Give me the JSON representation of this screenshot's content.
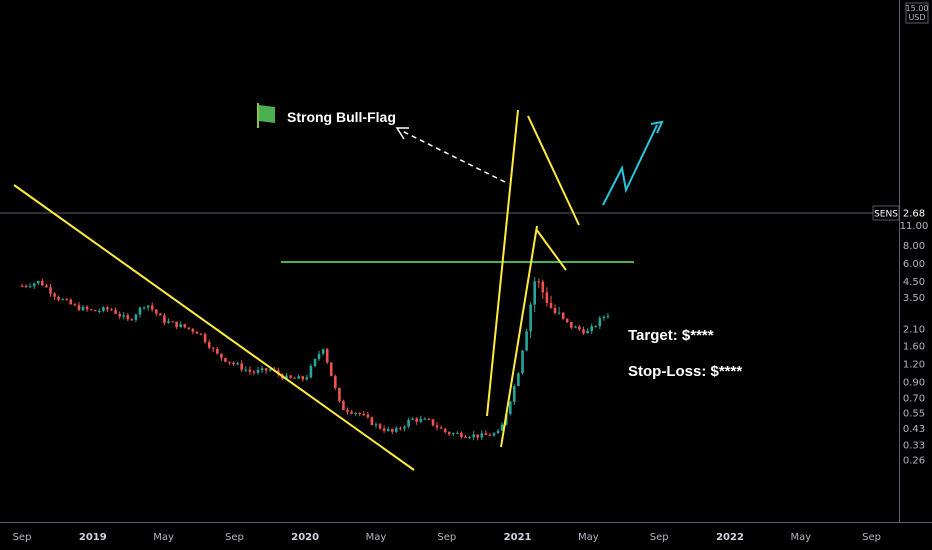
{
  "chart_data": {
    "type": "candlestick",
    "ticker": "SENS",
    "currency": "USD",
    "last_price": "2.68",
    "y_scale": "log",
    "y_ticks": [
      "0.26",
      "0.33",
      "0.43",
      "0.55",
      "0.70",
      "0.90",
      "1.20",
      "1.60",
      "2.10",
      "2.68",
      "3.50",
      "4.50",
      "6.00",
      "8.00",
      "11.00",
      "15.00"
    ],
    "x_ticks": [
      {
        "label": "Sep",
        "bold": false
      },
      {
        "label": "2019",
        "bold": true
      },
      {
        "label": "May",
        "bold": false
      },
      {
        "label": "Sep",
        "bold": false
      },
      {
        "label": "2020",
        "bold": true
      },
      {
        "label": "May",
        "bold": false
      },
      {
        "label": "Sep",
        "bold": false
      },
      {
        "label": "2021",
        "bold": true
      },
      {
        "label": "May",
        "bold": false
      },
      {
        "label": "Sep",
        "bold": false
      },
      {
        "label": "2022",
        "bold": true
      },
      {
        "label": "May",
        "bold": false
      },
      {
        "label": "Sep",
        "bold": false
      }
    ],
    "price_path": [
      [
        "2018-09",
        4.2
      ],
      [
        "2018-10",
        4.5
      ],
      [
        "2018-11",
        3.5
      ],
      [
        "2018-12",
        3.0
      ],
      [
        "2019-01",
        2.8
      ],
      [
        "2019-02",
        2.9
      ],
      [
        "2019-03",
        2.4
      ],
      [
        "2019-04",
        3.2
      ],
      [
        "2019-05",
        2.4
      ],
      [
        "2019-06",
        2.2
      ],
      [
        "2019-07",
        2.0
      ],
      [
        "2019-08",
        1.4
      ],
      [
        "2019-09",
        1.2
      ],
      [
        "2019-10",
        1.05
      ],
      [
        "2019-11",
        1.1
      ],
      [
        "2019-12",
        0.95
      ],
      [
        "2020-01",
        0.95
      ],
      [
        "2020-02",
        1.6
      ],
      [
        "2020-03",
        0.6
      ],
      [
        "2020-04",
        0.55
      ],
      [
        "2020-05",
        0.45
      ],
      [
        "2020-06",
        0.4
      ],
      [
        "2020-07",
        0.5
      ],
      [
        "2020-08",
        0.48
      ],
      [
        "2020-09",
        0.4
      ],
      [
        "2020-10",
        0.39
      ],
      [
        "2020-11",
        0.38
      ],
      [
        "2020-12",
        0.4
      ],
      [
        "2021-01",
        1.0
      ],
      [
        "2021-02",
        4.8
      ],
      [
        "2021-03",
        2.8
      ],
      [
        "2021-04",
        2.2
      ],
      [
        "2021-05",
        2.0
      ],
      [
        "2021-06",
        2.68
      ]
    ],
    "annotations": {
      "flag_label": "Strong Bull-Flag",
      "target": "Target: $****",
      "stop_loss": "Stop-Loss: $****"
    },
    "colors": {
      "up": "#26a69a",
      "down": "#ef5350",
      "trendline": "#ffeb3b",
      "support": "#4caf50",
      "projection": "#26c6da",
      "axis_text": "#b2b5be"
    }
  }
}
